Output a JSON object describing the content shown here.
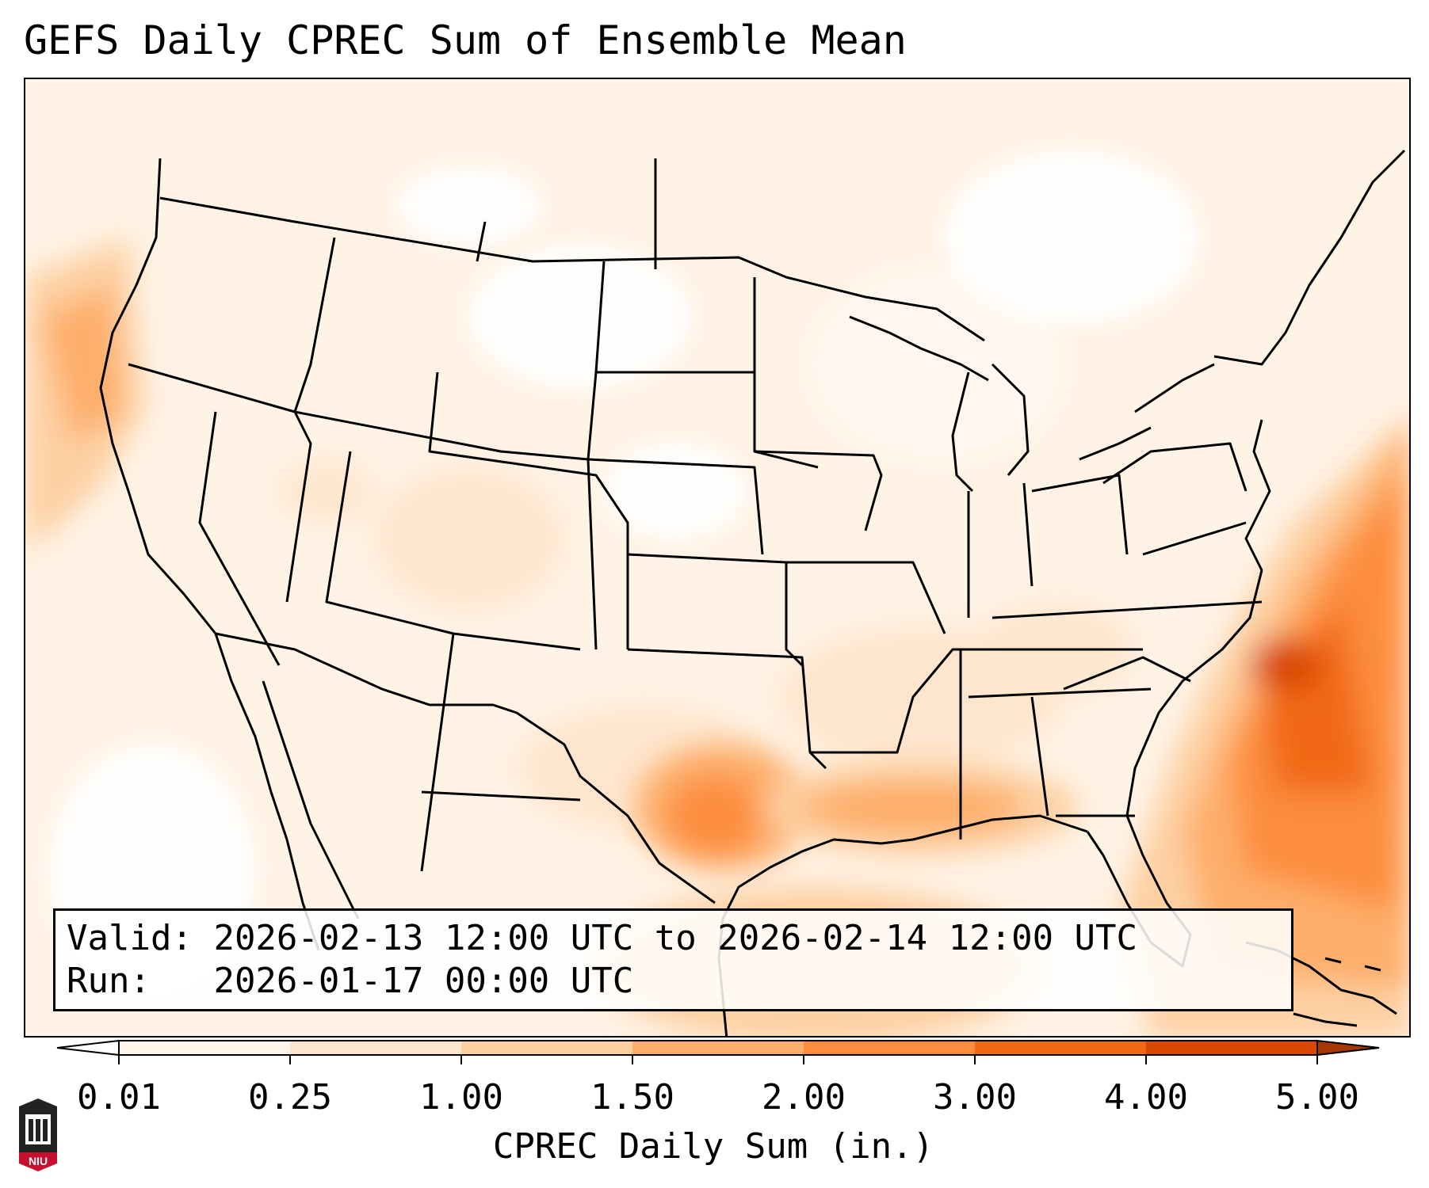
{
  "title": "GEFS Daily CPREC Sum of Ensemble Mean",
  "info": {
    "valid_label": "Valid:",
    "valid_value": "2026-02-13 12:00 UTC to 2026-02-14 12:00 UTC",
    "run_label": "Run:",
    "run_value": "2026-01-17 00:00 UTC"
  },
  "colorbar": {
    "label": "CPREC Daily Sum (in.)",
    "ticks": [
      "0.01",
      "0.25",
      "1.00",
      "1.50",
      "2.00",
      "3.00",
      "4.00",
      "5.00"
    ],
    "colors": [
      "#fff5eb",
      "#fee6ce",
      "#fdd0a2",
      "#fdae6b",
      "#fd8d3c",
      "#f16913",
      "#d94801"
    ],
    "under_color": "#ffffff",
    "over_color": "#a63603"
  },
  "logo": {
    "text": "NIU",
    "icon": "niu-logo-icon"
  }
}
